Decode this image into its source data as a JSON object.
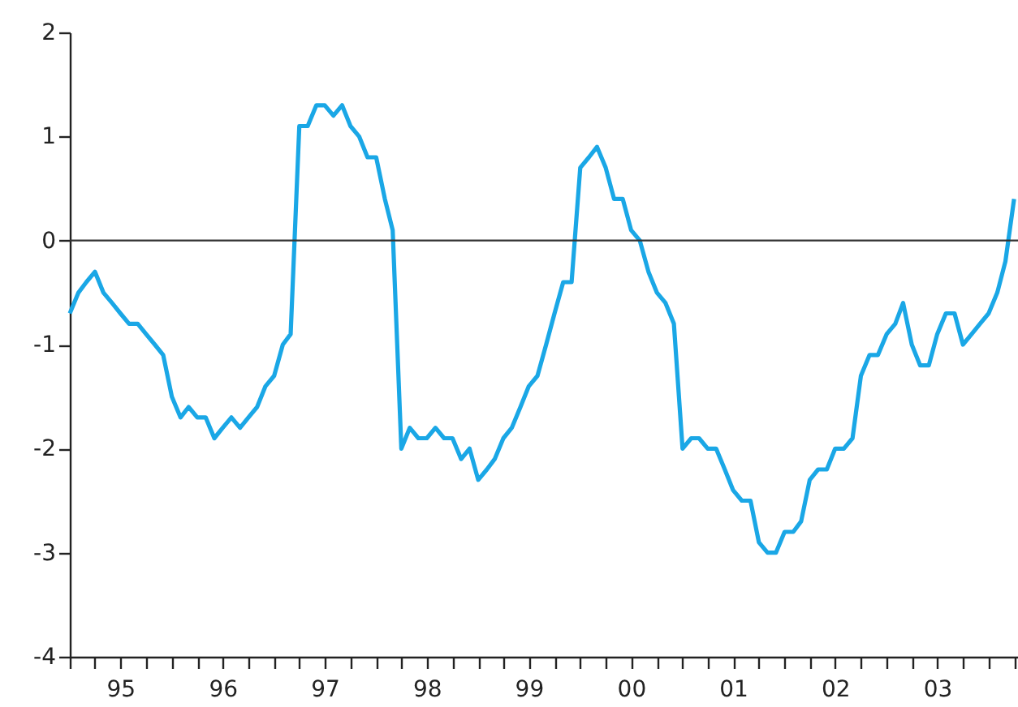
{
  "chart_data": {
    "type": "line",
    "x": [
      "1995-01",
      "1995-02",
      "1995-03",
      "1995-04",
      "1995-05",
      "1995-06",
      "1995-07",
      "1995-08",
      "1995-09",
      "1995-10",
      "1995-11",
      "1995-12",
      "1996-01",
      "1996-02",
      "1996-03",
      "1996-04",
      "1996-05",
      "1996-06",
      "1996-07",
      "1996-08",
      "1996-09",
      "1996-10",
      "1996-11",
      "1996-12",
      "1997-01",
      "1997-02",
      "1997-03",
      "1997-04",
      "1997-05",
      "1997-06",
      "1997-07",
      "1997-08",
      "1997-09",
      "1997-10",
      "1997-11",
      "1997-12",
      "1998-01",
      "1998-02",
      "1998-03",
      "1998-04",
      "1998-05",
      "1998-06",
      "1998-07",
      "1998-08",
      "1998-09",
      "1998-10",
      "1998-11",
      "1998-12",
      "1999-01",
      "1999-02",
      "1999-03",
      "1999-04",
      "1999-05",
      "1999-06",
      "1999-07",
      "1999-08",
      "1999-09",
      "1999-10",
      "1999-11",
      "1999-12",
      "2000-01",
      "2000-02",
      "2000-03",
      "2000-04",
      "2000-05",
      "2000-06",
      "2000-07",
      "2000-08",
      "2000-09",
      "2000-10",
      "2000-11",
      "2000-12",
      "2001-01",
      "2001-02",
      "2001-03",
      "2001-04",
      "2001-05",
      "2001-06",
      "2001-07",
      "2001-08",
      "2001-09",
      "2001-10",
      "2001-11",
      "2001-12",
      "2002-01",
      "2002-02",
      "2002-03",
      "2002-04",
      "2002-05",
      "2002-06",
      "2002-07",
      "2002-08",
      "2002-09",
      "2002-10",
      "2002-11",
      "2002-12",
      "2003-01",
      "2003-02",
      "2003-03",
      "2003-04",
      "2003-05",
      "2003-06",
      "2003-07",
      "2003-08",
      "2003-09",
      "2003-10",
      "2003-11",
      "2003-12",
      "2004-01",
      "2004-02",
      "2004-03",
      "2004-04"
    ],
    "series": [
      {
        "color": "#1aa7e6",
        "values": [
          -0.7,
          -0.5,
          -0.4,
          -0.3,
          -0.5,
          -0.6,
          -0.7,
          -0.8,
          -0.8,
          -0.9,
          -1.0,
          -1.1,
          -1.5,
          -1.7,
          -1.6,
          -1.7,
          -1.7,
          -1.9,
          -1.8,
          -1.7,
          -1.8,
          -1.7,
          -1.6,
          -1.4,
          -1.3,
          -1.0,
          -0.9,
          1.1,
          1.1,
          1.3,
          1.3,
          1.2,
          1.3,
          1.1,
          1.0,
          0.8,
          0.8,
          0.4,
          0.1,
          -2.0,
          -1.8,
          -1.9,
          -1.9,
          -1.8,
          -1.9,
          -1.9,
          -2.1,
          -2.0,
          -2.3,
          -2.2,
          -2.1,
          -1.9,
          -1.8,
          -1.6,
          -1.4,
          -1.3,
          -1.0,
          -0.7,
          -0.4,
          -0.4,
          0.7,
          0.8,
          0.9,
          0.7,
          0.4,
          0.4,
          0.1,
          0.0,
          -0.3,
          -0.5,
          -0.6,
          -0.8,
          -2.0,
          -1.9,
          -1.9,
          -2.0,
          -2.0,
          -2.2,
          -2.4,
          -2.5,
          -2.5,
          -2.9,
          -3.0,
          -3.0,
          -2.8,
          -2.8,
          -2.7,
          -2.3,
          -2.2,
          -2.2,
          -2.0,
          -2.0,
          -1.9,
          -1.3,
          -1.1,
          -1.1,
          -0.9,
          -0.8,
          -0.6,
          -1.0,
          -1.2,
          -1.2,
          -0.9,
          -0.7,
          -0.7,
          -1.0,
          -0.9,
          -0.8,
          -0.7,
          -0.5,
          -0.2,
          0.4
        ]
      }
    ],
    "xlim": [
      "1995-01",
      "2004-04-15"
    ],
    "xticks": [
      {
        "value": "1995-01",
        "label": null
      },
      {
        "value": "1995-04",
        "label": null
      },
      {
        "value": "1995-07",
        "label": "95"
      },
      {
        "value": "1995-10",
        "label": null
      },
      {
        "value": "1996-01",
        "label": null
      },
      {
        "value": "1996-04",
        "label": null
      },
      {
        "value": "1996-07",
        "label": "96"
      },
      {
        "value": "1996-10",
        "label": null
      },
      {
        "value": "1997-01",
        "label": null
      },
      {
        "value": "1997-04",
        "label": null
      },
      {
        "value": "1997-07",
        "label": "97"
      },
      {
        "value": "1997-10",
        "label": null
      },
      {
        "value": "1998-01",
        "label": null
      },
      {
        "value": "1998-04",
        "label": null
      },
      {
        "value": "1998-07",
        "label": "98"
      },
      {
        "value": "1998-10",
        "label": null
      },
      {
        "value": "1999-01",
        "label": null
      },
      {
        "value": "1999-04",
        "label": null
      },
      {
        "value": "1999-07",
        "label": "99"
      },
      {
        "value": "1999-10",
        "label": null
      },
      {
        "value": "2000-01",
        "label": null
      },
      {
        "value": "2000-04",
        "label": null
      },
      {
        "value": "2000-07",
        "label": "00"
      },
      {
        "value": "2000-10",
        "label": null
      },
      {
        "value": "2001-01",
        "label": null
      },
      {
        "value": "2001-04",
        "label": null
      },
      {
        "value": "2001-07",
        "label": "01"
      },
      {
        "value": "2001-10",
        "label": null
      },
      {
        "value": "2002-01",
        "label": null
      },
      {
        "value": "2002-04",
        "label": null
      },
      {
        "value": "2002-07",
        "label": "02"
      },
      {
        "value": "2002-10",
        "label": null
      },
      {
        "value": "2003-01",
        "label": null
      },
      {
        "value": "2003-04",
        "label": null
      },
      {
        "value": "2003-07",
        "label": "03"
      },
      {
        "value": "2003-10",
        "label": null
      },
      {
        "value": "2004-01",
        "label": null
      },
      {
        "value": "2004-04",
        "label": null
      }
    ],
    "ylim": [
      -4,
      2
    ],
    "yticks": [
      -4,
      -3,
      -2,
      -1,
      0,
      1,
      2
    ],
    "ref_lines": [
      {
        "axis": "y",
        "value": 0,
        "color": "#333333"
      }
    ],
    "grid": false,
    "legend": false,
    "marker": "none",
    "line_style": "solid"
  }
}
